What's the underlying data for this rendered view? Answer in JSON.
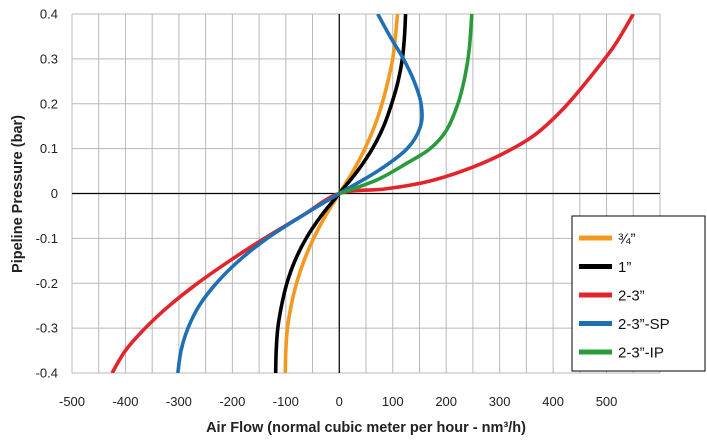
{
  "chart_data": {
    "type": "line",
    "title": "",
    "xlabel": "Air Flow (normal cubic meter per hour - nm³/h)",
    "ylabel": "Pipeline Pressure (bar)",
    "xlim": [
      -500,
      600
    ],
    "ylim": [
      -0.4,
      0.4
    ],
    "x_ticks": [
      "-500",
      "-400",
      "-300",
      "-200",
      "-100",
      "0",
      "100",
      "200",
      "300",
      "400",
      "500"
    ],
    "y_ticks": [
      "0.4",
      "0.3",
      "0.2",
      "0.1",
      "0",
      "-0.1",
      "-0.2",
      "-0.3",
      "-0.4"
    ],
    "grid": true,
    "legend_position": "bottom-right",
    "series": [
      {
        "name": "¾”",
        "color": "#f5981f",
        "points": [
          [
            -101,
            -0.4
          ],
          [
            -100,
            -0.35
          ],
          [
            -97,
            -0.3
          ],
          [
            -90,
            -0.25
          ],
          [
            -80,
            -0.2
          ],
          [
            -66,
            -0.15
          ],
          [
            -48,
            -0.1
          ],
          [
            -26,
            -0.05
          ],
          [
            0,
            0
          ],
          [
            26,
            0.05
          ],
          [
            48,
            0.1
          ],
          [
            66,
            0.15
          ],
          [
            80,
            0.2
          ],
          [
            91,
            0.25
          ],
          [
            100,
            0.3
          ],
          [
            105,
            0.35
          ],
          [
            109,
            0.4
          ]
        ]
      },
      {
        "name": "1”",
        "color": "#000000",
        "points": [
          [
            -119,
            -0.4
          ],
          [
            -118,
            -0.35
          ],
          [
            -115,
            -0.3
          ],
          [
            -108,
            -0.25
          ],
          [
            -98,
            -0.2
          ],
          [
            -83,
            -0.15
          ],
          [
            -62,
            -0.1
          ],
          [
            -34,
            -0.05
          ],
          [
            0,
            0
          ],
          [
            34,
            0.05
          ],
          [
            62,
            0.1
          ],
          [
            83,
            0.15
          ],
          [
            98,
            0.2
          ],
          [
            110,
            0.25
          ],
          [
            118,
            0.3
          ],
          [
            122,
            0.35
          ],
          [
            124,
            0.4
          ]
        ]
      },
      {
        "name": "2-3”",
        "color": "#e3242b",
        "points": [
          [
            -425,
            -0.4
          ],
          [
            -400,
            -0.35
          ],
          [
            -363,
            -0.3
          ],
          [
            -318,
            -0.25
          ],
          [
            -265,
            -0.2
          ],
          [
            -205,
            -0.15
          ],
          [
            -140,
            -0.1
          ],
          [
            -70,
            -0.05
          ],
          [
            0,
            0
          ],
          [
            85,
            0.01
          ],
          [
            160,
            0.025
          ],
          [
            230,
            0.05
          ],
          [
            300,
            0.085
          ],
          [
            365,
            0.13
          ],
          [
            420,
            0.19
          ],
          [
            470,
            0.26
          ],
          [
            515,
            0.33
          ],
          [
            550,
            0.4
          ]
        ]
      },
      {
        "name": "2-3”-SP",
        "color": "#1f6fb5",
        "points": [
          [
            -302,
            -0.4
          ],
          [
            -296,
            -0.35
          ],
          [
            -283,
            -0.3
          ],
          [
            -262,
            -0.25
          ],
          [
            -230,
            -0.2
          ],
          [
            -188,
            -0.15
          ],
          [
            -135,
            -0.1
          ],
          [
            -70,
            -0.05
          ],
          [
            0,
            0
          ],
          [
            72,
            0.05
          ],
          [
            127,
            0.1
          ],
          [
            152,
            0.15
          ],
          [
            153,
            0.2
          ],
          [
            140,
            0.25
          ],
          [
            120,
            0.3
          ],
          [
            95,
            0.35
          ],
          [
            72,
            0.4
          ]
        ]
      },
      {
        "name": "2-3”-IP",
        "color": "#2a9a3c",
        "points": [
          [
            0,
            0
          ],
          [
            70,
            0.03
          ],
          [
            130,
            0.07
          ],
          [
            170,
            0.1
          ],
          [
            200,
            0.14
          ],
          [
            222,
            0.2
          ],
          [
            235,
            0.26
          ],
          [
            243,
            0.32
          ],
          [
            248,
            0.4
          ]
        ]
      }
    ]
  }
}
